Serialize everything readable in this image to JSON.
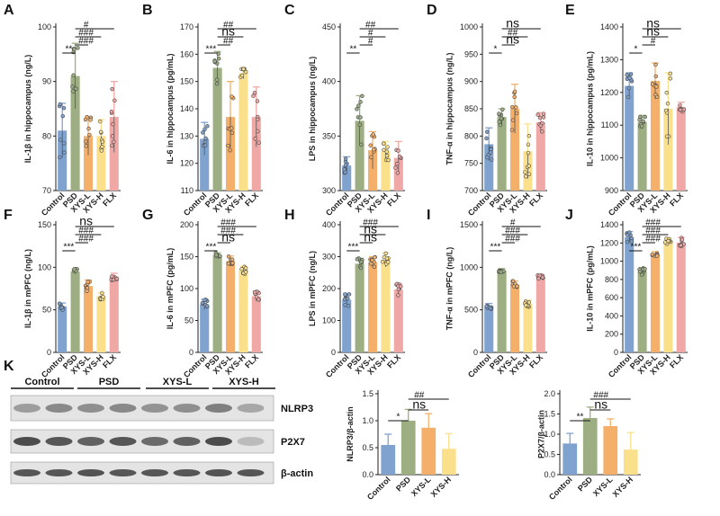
{
  "chart_data": [
    {
      "panel": "A",
      "type": "bar",
      "categories": [
        "Control",
        "PSD",
        "XYS-L",
        "XYS-H",
        "FLX"
      ],
      "values": [
        81,
        91,
        80,
        80,
        83.5
      ],
      "errors": [
        5,
        6,
        3.5,
        3,
        6.5
      ],
      "ylabel": "IL-1β in hippocampus (ng/L)",
      "ylim": [
        70,
        100
      ],
      "yticks": [
        70,
        80,
        90,
        100
      ],
      "significance": [
        {
          "from": 0,
          "to": 1,
          "label": "**"
        },
        {
          "from": 1,
          "to": 2,
          "label": "###"
        },
        {
          "from": 1,
          "to": 3,
          "label": "###"
        },
        {
          "from": 1,
          "to": 4,
          "label": "#"
        }
      ]
    },
    {
      "panel": "B",
      "type": "bar",
      "categories": [
        "Control",
        "PSD",
        "XYS-L",
        "XYS-H",
        "FLX"
      ],
      "values": [
        129,
        155,
        137,
        153,
        137
      ],
      "errors": [
        6,
        6,
        13,
        2,
        11
      ],
      "ylabel": "IL-6 in hippocampus (pg/mL)",
      "ylim": [
        110,
        170
      ],
      "yticks": [
        110,
        120,
        130,
        140,
        150,
        160,
        170
      ],
      "significance": [
        {
          "from": 0,
          "to": 1,
          "label": "***"
        },
        {
          "from": 1,
          "to": 2,
          "label": "##"
        },
        {
          "from": 1,
          "to": 3,
          "label": "ns"
        },
        {
          "from": 1,
          "to": 4,
          "label": "##"
        }
      ]
    },
    {
      "panel": "C",
      "type": "bar",
      "categories": [
        "Control",
        "PSD",
        "XYS-L",
        "XYS-H",
        "FLX"
      ],
      "values": [
        323,
        364,
        337,
        336,
        330
      ],
      "errors": [
        8,
        23,
        17,
        9,
        15
      ],
      "ylabel": "LPS in hippocampus (ng/L)",
      "ylim": [
        300,
        450
      ],
      "yticks": [
        300,
        350,
        400,
        450
      ],
      "significance": [
        {
          "from": 0,
          "to": 1,
          "label": "**"
        },
        {
          "from": 1,
          "to": 2,
          "label": "#"
        },
        {
          "from": 1,
          "to": 3,
          "label": "#"
        },
        {
          "from": 1,
          "to": 4,
          "label": "##"
        }
      ]
    },
    {
      "panel": "D",
      "type": "bar",
      "categories": [
        "Control",
        "PSD",
        "XYS-L",
        "XYS-H",
        "FLX"
      ],
      "values": [
        785,
        835,
        850,
        772,
        825
      ],
      "errors": [
        30,
        15,
        45,
        50,
        18
      ],
      "ylabel": "TNF-α in hippocampus (ng/L)",
      "ylim": [
        700,
        1000
      ],
      "yticks": [
        700,
        750,
        800,
        850,
        900,
        950,
        1000
      ],
      "significance": [
        {
          "from": 0,
          "to": 1,
          "label": "*"
        },
        {
          "from": 1,
          "to": 2,
          "label": "ns"
        },
        {
          "from": 1,
          "to": 3,
          "label": "##"
        },
        {
          "from": 1,
          "to": 4,
          "label": "ns"
        }
      ]
    },
    {
      "panel": "E",
      "type": "bar",
      "categories": [
        "Control",
        "PSD",
        "XYS-L",
        "XYS-H",
        "FLX"
      ],
      "values": [
        1220,
        1110,
        1235,
        1150,
        1155
      ],
      "errors": [
        40,
        20,
        55,
        110,
        15
      ],
      "ylabel": "IL-10 in hippocampus (pg/mL)",
      "ylim": [
        900,
        1400
      ],
      "yticks": [
        900,
        1000,
        1100,
        1200,
        1300,
        1400
      ],
      "significance": [
        {
          "from": 0,
          "to": 1,
          "label": "*"
        },
        {
          "from": 1,
          "to": 2,
          "label": "#"
        },
        {
          "from": 1,
          "to": 3,
          "label": "ns"
        },
        {
          "from": 1,
          "to": 4,
          "label": "ns"
        }
      ]
    },
    {
      "panel": "F",
      "type": "bar",
      "categories": [
        "Control",
        "PSD",
        "XYS-L",
        "XYS-H",
        "FLX"
      ],
      "values": [
        54,
        95,
        78,
        66,
        89
      ],
      "errors": [
        4,
        3,
        7,
        4,
        4
      ],
      "ylabel": "IL-1β in mPFC (ng/L)",
      "ylim": [
        0,
        150
      ],
      "yticks": [
        0,
        50,
        100,
        150
      ],
      "significance": [
        {
          "from": 0,
          "to": 1,
          "label": "***"
        },
        {
          "from": 1,
          "to": 2,
          "label": "###"
        },
        {
          "from": 1,
          "to": 3,
          "label": "###"
        },
        {
          "from": 1,
          "to": 4,
          "label": "ns"
        }
      ]
    },
    {
      "panel": "G",
      "type": "bar",
      "categories": [
        "Control",
        "PSD",
        "XYS-L",
        "XYS-H",
        "FLX"
      ],
      "values": [
        75,
        153,
        143,
        129,
        88
      ],
      "errors": [
        8,
        3,
        8,
        6,
        8
      ],
      "ylabel": "IL-6 in mPFC (pg/mL)",
      "ylim": [
        0,
        200
      ],
      "yticks": [
        0,
        50,
        100,
        150,
        200
      ],
      "significance": [
        {
          "from": 0,
          "to": 1,
          "label": "***"
        },
        {
          "from": 1,
          "to": 2,
          "label": "ns"
        },
        {
          "from": 1,
          "to": 3,
          "label": "###"
        },
        {
          "from": 1,
          "to": 4,
          "label": "###"
        }
      ]
    },
    {
      "panel": "H",
      "type": "bar",
      "categories": [
        "Control",
        "PSD",
        "XYS-L",
        "XYS-H",
        "FLX"
      ],
      "values": [
        165,
        278,
        283,
        290,
        197
      ],
      "errors": [
        20,
        17,
        17,
        22,
        18
      ],
      "ylabel": "LPS in mPFC (ng/L)",
      "ylim": [
        0,
        400
      ],
      "yticks": [
        0,
        100,
        200,
        300,
        400
      ],
      "significance": [
        {
          "from": 0,
          "to": 1,
          "label": "***"
        },
        {
          "from": 1,
          "to": 2,
          "label": "ns"
        },
        {
          "from": 1,
          "to": 3,
          "label": "ns"
        },
        {
          "from": 1,
          "to": 4,
          "label": "###"
        }
      ]
    },
    {
      "panel": "I",
      "type": "bar",
      "categories": [
        "Control",
        "PSD",
        "XYS-L",
        "XYS-H",
        "FLX"
      ],
      "values": [
        540,
        960,
        800,
        570,
        890
      ],
      "errors": [
        35,
        25,
        40,
        45,
        25
      ],
      "ylabel": "TNF-α in mPFC (ng/L)",
      "ylim": [
        0,
        1500
      ],
      "yticks": [
        0,
        500,
        1000,
        1500
      ],
      "significance": [
        {
          "from": 0,
          "to": 1,
          "label": "***"
        },
        {
          "from": 1,
          "to": 2,
          "label": "###"
        },
        {
          "from": 1,
          "to": 3,
          "label": "###"
        },
        {
          "from": 1,
          "to": 4,
          "label": "#"
        }
      ]
    },
    {
      "panel": "J",
      "type": "bar",
      "categories": [
        "Control",
        "PSD",
        "XYS-L",
        "XYS-H",
        "FLX"
      ],
      "values": [
        1265,
        890,
        1075,
        1215,
        1205
      ],
      "errors": [
        60,
        40,
        30,
        40,
        55
      ],
      "ylabel": "IL-10 in mPFC (pg/mL)",
      "ylim": [
        0,
        1400
      ],
      "yticks": [
        0,
        200,
        400,
        600,
        800,
        1000,
        1200,
        1400
      ],
      "significance": [
        {
          "from": 0,
          "to": 1,
          "label": "***"
        },
        {
          "from": 1,
          "to": 2,
          "label": "###"
        },
        {
          "from": 1,
          "to": 3,
          "label": "###"
        },
        {
          "from": 1,
          "to": 4,
          "label": "###"
        }
      ]
    },
    {
      "panel": "K-NLRP3",
      "type": "bar",
      "categories": [
        "Control",
        "PSD",
        "XYS-L",
        "XYS-H"
      ],
      "values": [
        0.55,
        1.0,
        0.87,
        0.48
      ],
      "errors": [
        0.2,
        0.21,
        0.26,
        0.28
      ],
      "ylabel": "NLRP3/β-actin",
      "ylim": [
        0,
        1.5
      ],
      "yticks": [
        0.0,
        0.5,
        1.0,
        1.5
      ],
      "significance": [
        {
          "from": 0,
          "to": 1,
          "label": "*"
        },
        {
          "from": 1,
          "to": 2,
          "label": "ns"
        },
        {
          "from": 1,
          "to": 3,
          "label": "##"
        }
      ]
    },
    {
      "panel": "K-P2X7",
      "type": "bar",
      "categories": [
        "Control",
        "PSD",
        "XYS-L",
        "XYS-H"
      ],
      "values": [
        0.77,
        1.4,
        1.2,
        0.62
      ],
      "errors": [
        0.25,
        0.27,
        0.18,
        0.42
      ],
      "ylabel": "P2X7/β-actin",
      "ylim": [
        0,
        2.0
      ],
      "yticks": [
        0.0,
        0.5,
        1.0,
        1.5,
        2.0
      ],
      "significance": [
        {
          "from": 0,
          "to": 1,
          "label": "**"
        },
        {
          "from": 1,
          "to": 2,
          "label": "ns"
        },
        {
          "from": 1,
          "to": 3,
          "label": "###"
        }
      ]
    }
  ],
  "colors": {
    "Control": "#7fa2cf",
    "PSD": "#9daf82",
    "XYS-L": "#f4b06b",
    "XYS-H": "#fbe08c",
    "FLX": "#f0a8a6"
  },
  "western_blot": {
    "panel_label": "K",
    "groups": [
      "Control",
      "PSD",
      "XYS-L",
      "XYS-H"
    ],
    "bands": [
      "NLRP3",
      "P2X7",
      "β-actin"
    ]
  }
}
